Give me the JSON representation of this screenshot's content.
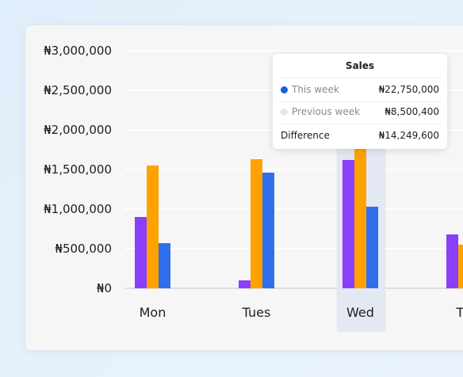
{
  "chart_data": {
    "type": "bar",
    "categories": [
      "Mon",
      "Tues",
      "Wed",
      "Th"
    ],
    "series": [
      {
        "color": "#8a3ffc",
        "values": [
          900000,
          100000,
          1620000,
          680000
        ]
      },
      {
        "color": "#ffa200",
        "values": [
          1550000,
          1630000,
          1760000,
          550000
        ]
      },
      {
        "color": "#2f6fed",
        "values": [
          570000,
          1460000,
          1030000,
          0
        ]
      }
    ],
    "y_ticks": [
      "₦0",
      "₦500,000",
      "₦1,000,000",
      "₦1,500,000",
      "₦2,000,000",
      "₦2,500,000",
      "₦3,000,000"
    ],
    "ylim": [
      0,
      3000000
    ],
    "grid": true,
    "highlight_category": "Wed"
  },
  "tooltip": {
    "title": "Sales",
    "this_week_label": "This week",
    "this_week_value": "₦22,750,000",
    "this_week_color": "#1f5fd6",
    "previous_week_label": "Previous week",
    "previous_week_value": "₦8,500,400",
    "previous_week_color": "#dfe6f5",
    "difference_label": "Difference",
    "difference_value": "₦14,249,600"
  }
}
